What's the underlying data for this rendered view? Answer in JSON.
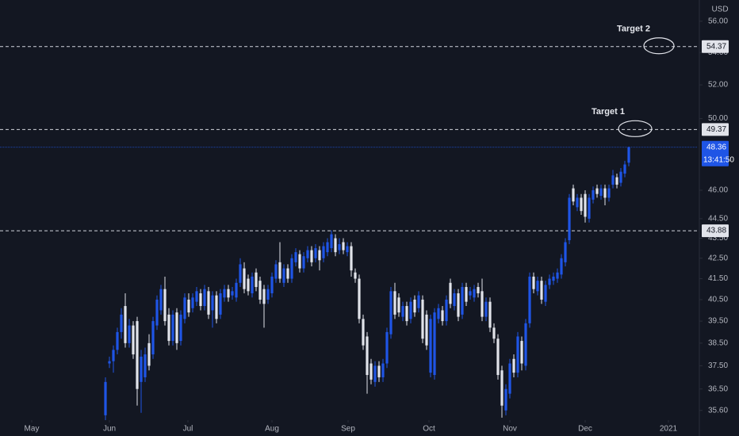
{
  "chart_data": {
    "type": "candlestick",
    "y_axis_label": "USD",
    "log_scale": true,
    "grid": false,
    "up_color": "#1f55e6",
    "down_color": "#e1e3ea",
    "background": "#131722",
    "xlim": [
      -26.6,
      149.4
    ],
    "xticks": [
      {
        "value": -18.6,
        "label": "May"
      },
      {
        "value": 1,
        "label": "Jun"
      },
      {
        "value": 20.8,
        "label": "Jul"
      },
      {
        "value": 42,
        "label": "Aug"
      },
      {
        "value": 61.2,
        "label": "Sep"
      },
      {
        "value": 81.6,
        "label": "Oct"
      },
      {
        "value": 102,
        "label": "Nov"
      },
      {
        "value": 121,
        "label": "Dec"
      },
      {
        "value": 142,
        "label": "2021"
      }
    ],
    "ylim": [
      35.2,
      57.4
    ],
    "yticks": [
      {
        "value": 56,
        "label": "56.00"
      },
      {
        "value": 54,
        "label": "54.00"
      },
      {
        "value": 52,
        "label": "52.00"
      },
      {
        "value": 50,
        "label": "50.00"
      },
      {
        "value": 46,
        "label": "46.00"
      },
      {
        "value": 44.5,
        "label": "44.50"
      },
      {
        "value": 43.5,
        "label": "43.50"
      },
      {
        "value": 42.5,
        "label": "42.50"
      },
      {
        "value": 41.5,
        "label": "41.50"
      },
      {
        "value": 40.5,
        "label": "40.50"
      },
      {
        "value": 39.5,
        "label": "39.50"
      },
      {
        "value": 38.5,
        "label": "38.50"
      },
      {
        "value": 37.5,
        "label": "37.50"
      },
      {
        "value": 36.5,
        "label": "36.50"
      },
      {
        "value": 35.6,
        "label": "35.60"
      }
    ],
    "price_lines": [
      {
        "value": 54.37,
        "label": "54.37",
        "annotation": "Target 2"
      },
      {
        "value": 49.37,
        "label": "49.37",
        "annotation": "Target 1"
      },
      {
        "value": 43.88,
        "label": "43.88"
      }
    ],
    "last_price": {
      "value": 48.36,
      "label": "48.36",
      "countdown": "13:41:50"
    },
    "open": [
      35.4,
      37.6,
      37.7,
      38.2,
      39,
      40.2,
      38.5,
      39.3,
      39.5,
      36.8,
      37,
      38.5,
      38,
      39.3,
      40,
      41,
      39.8,
      38.6,
      39.9,
      38.6,
      39.6,
      40.5,
      40.1,
      40.4,
      40.8,
      40.2,
      40.9,
      40,
      40.7,
      39.8,
      40.6,
      41,
      40.7,
      40.6,
      41.3,
      42,
      41.5,
      40.8,
      41.8,
      41.4,
      41,
      40.5,
      40.8,
      41.5,
      42.3,
      41.3,
      42,
      41.5,
      42.3,
      42.7,
      42,
      42.5,
      42.9,
      42.5,
      42.9,
      42.5,
      42.8,
      43,
      43.5,
      42.9,
      43.3,
      42.8,
      43.1,
      41.8,
      41.5,
      39.6,
      38.8,
      37.6,
      36.8,
      37.5,
      37,
      37.6,
      38.9,
      40.9,
      40.6,
      39.7,
      40.2,
      39.6,
      40.5,
      40.1,
      40.5,
      39.8,
      37.2,
      37.1,
      39.6,
      40,
      39.5,
      41.3,
      40.2,
      40.8,
      39.8,
      41.1,
      40.7,
      40.6,
      41.1,
      40.9,
      39.7,
      40.4,
      39.2,
      38.7,
      37.3,
      35.6,
      36.3,
      37.8,
      37.2,
      38.6,
      37.5,
      39.4,
      41.6,
      40.9,
      41.4,
      40.4,
      41.2,
      41.4,
      41.5,
      41.7,
      42.3,
      43.4,
      46.1,
      45.1,
      45.6,
      45.8,
      44.5,
      45.5,
      46.1,
      45.7,
      46.1,
      45.6,
      46.3,
      46.7,
      46.4,
      46.9,
      47.5
    ],
    "high": [
      37,
      37.9,
      38.4,
      39.2,
      40.1,
      40.8,
      39.6,
      39.5,
      39.7,
      38.2,
      38.3,
      38.9,
      39.7,
      40.7,
      41.2,
      41.6,
      40.1,
      40,
      40.1,
      40,
      40.8,
      40.8,
      40.8,
      41.1,
      41,
      41.2,
      41.1,
      40.9,
      40.9,
      41,
      41.2,
      41.2,
      41.1,
      41.5,
      42.5,
      42.3,
      41.7,
      41.8,
      42,
      41.6,
      41.2,
      41.2,
      41.8,
      42.4,
      43.3,
      42.2,
      42.2,
      42.7,
      43,
      42.9,
      42.8,
      43.1,
      43.1,
      43.2,
      43.1,
      43.3,
      43.5,
      43.9,
      43.7,
      43.5,
      43.5,
      43.3,
      43.3,
      42,
      41.7,
      39.8,
      39,
      37.8,
      37.7,
      37.7,
      37.8,
      39.2,
      41.1,
      41.3,
      40.8,
      40.4,
      40.4,
      40.6,
      40.7,
      40.9,
      40.7,
      40,
      39.8,
      40.1,
      40.3,
      40.2,
      40.7,
      41.5,
      41,
      41,
      41.3,
      41.3,
      41.1,
      41.2,
      41.3,
      41.5,
      40.6,
      40.6,
      39.4,
      38.9,
      37.5,
      36.7,
      37.8,
      38,
      39,
      38.8,
      39.6,
      41.8,
      41.8,
      41.6,
      41.6,
      41.4,
      41.7,
      41.8,
      42,
      42.7,
      43.5,
      45.8,
      46.3,
      45.8,
      45.8,
      46,
      45.8,
      46.2,
      46.3,
      46.3,
      46.3,
      46.3,
      47.1,
      46.9,
      47.2,
      47.6,
      48.4
    ],
    "low": [
      35.2,
      37.4,
      37.2,
      38,
      38.7,
      38.3,
      38.3,
      37.8,
      35.8,
      35.5,
      36.8,
      37.3,
      37.8,
      39.1,
      39.8,
      39.3,
      38.4,
      38.4,
      38.2,
      38.4,
      39.4,
      39.7,
      39.9,
      40.2,
      40,
      40,
      39.6,
      39.2,
      39.4,
      39.6,
      40.4,
      40.4,
      40.5,
      40.4,
      41.1,
      40.8,
      40.7,
      40.6,
      40.9,
      40.3,
      39.2,
      40.3,
      40.6,
      41.3,
      41.3,
      41.1,
      41.3,
      41.3,
      42.1,
      41.8,
      41.8,
      42.3,
      42.1,
      42.3,
      41.9,
      42.3,
      42.6,
      42.8,
      42.6,
      42.7,
      42.7,
      42.6,
      41.6,
      41.3,
      39.4,
      38.2,
      36.3,
      36.7,
      36.6,
      36.8,
      36.8,
      37.4,
      38.7,
      39.6,
      39.7,
      39.5,
      39.3,
      39.4,
      39.7,
      39.9,
      38.5,
      38.2,
      37,
      36.9,
      39.4,
      39.3,
      39.3,
      40.1,
      40,
      39.5,
      39.6,
      40.2,
      40.5,
      40.4,
      40.6,
      39.5,
      39.5,
      39,
      38.5,
      36.9,
      35.3,
      35.4,
      36.1,
      37,
      37,
      37.3,
      37.3,
      39.2,
      40.8,
      40.7,
      40.3,
      40.2,
      41,
      41.2,
      41.3,
      41.5,
      42.1,
      43.2,
      45.2,
      44.9,
      44.7,
      44.3,
      44.3,
      45.3,
      45.6,
      45.5,
      45.2,
      45.4,
      46.1,
      46.1,
      46.2,
      46.7,
      47.3
    ],
    "close": [
      36.8,
      37.7,
      38.2,
      39,
      39.8,
      38.5,
      39.3,
      38,
      36.5,
      37.9,
      38,
      37.5,
      39.5,
      40.5,
      41,
      39.5,
      38.6,
      39.8,
      38.5,
      39.8,
      40.6,
      39.9,
      40.6,
      40.9,
      40.2,
      41,
      39.8,
      40.7,
      39.6,
      40.8,
      41,
      40.6,
      40.9,
      41.3,
      42.2,
      41,
      40.9,
      41.6,
      41.1,
      40.5,
      40.3,
      41,
      41.6,
      42.2,
      41.5,
      42,
      41.5,
      42.5,
      42.8,
      42,
      42.6,
      42.9,
      42.3,
      43,
      42.4,
      43.1,
      43.3,
      43.7,
      42.8,
      43.2,
      42.9,
      43.1,
      41.9,
      41.5,
      39.6,
      38.4,
      37.1,
      36.9,
      37.5,
      37,
      37.6,
      39,
      40.9,
      39.8,
      39.9,
      40.2,
      39.5,
      40.4,
      39.9,
      40.7,
      38.7,
      38.4,
      39.6,
      39.9,
      40.1,
      39.5,
      40.5,
      40.3,
      40.8,
      39.7,
      41.1,
      40.4,
      40.9,
      41,
      40.8,
      39.7,
      40.4,
      39.2,
      38.7,
      37.1,
      35.8,
      36.5,
      37.6,
      37.2,
      38.8,
      37.6,
      39.4,
      41.6,
      41,
      41.4,
      40.5,
      41.2,
      41.5,
      41.6,
      41.8,
      42.5,
      43.3,
      45.6,
      45.4,
      45.6,
      44.9,
      44.6,
      45.6,
      46,
      45.8,
      46.1,
      45.6,
      46.1,
      46.8,
      46.3,
      47,
      47.4,
      48.36
    ]
  }
}
